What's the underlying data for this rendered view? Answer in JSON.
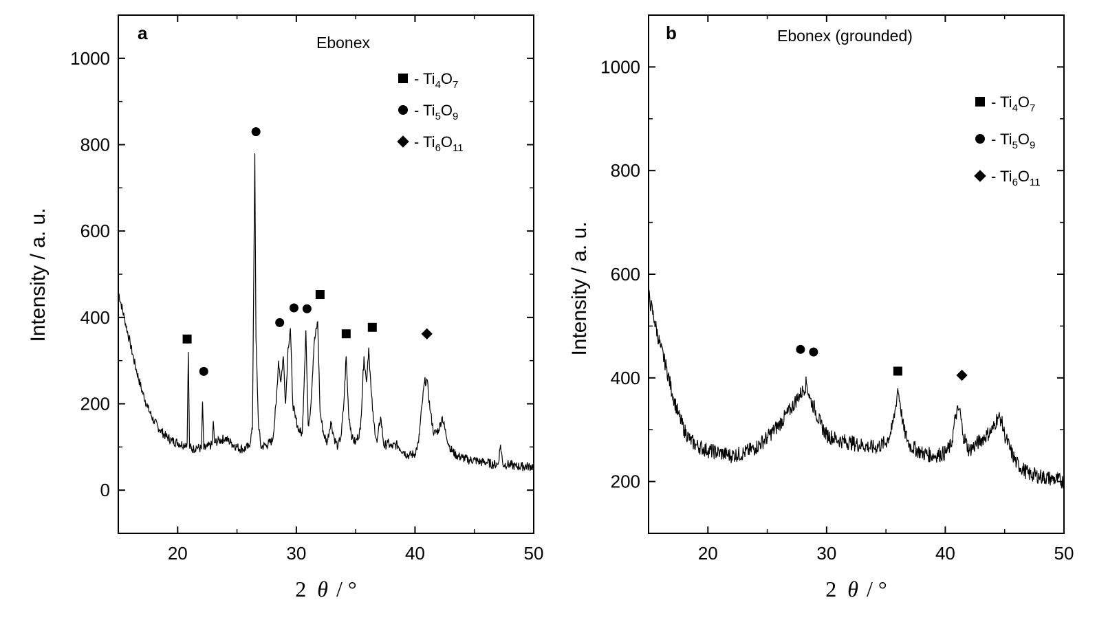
{
  "chart_data": [
    {
      "type": "line",
      "panel_label": "a",
      "title": "Ebonex",
      "xlabel_prefix": "2",
      "xlabel_theta": "θ",
      "xlabel_suffix": "/ °",
      "ylabel": "Intensity / a. u.",
      "xlim": [
        15,
        50
      ],
      "ylim": [
        -100,
        1100
      ],
      "xticks": [
        "20",
        "30",
        "40",
        "50"
      ],
      "yticks": [
        "0",
        "200",
        "400",
        "600",
        "800",
        "1000"
      ],
      "grid": false,
      "legend_position": "top-right",
      "legend": [
        {
          "marker": "square",
          "dash": "-",
          "base": "Ti",
          "sub1": "4",
          "el": "O",
          "sub2": "7"
        },
        {
          "marker": "circle",
          "dash": "-",
          "base": "Ti",
          "sub1": "5",
          "el": "O",
          "sub2": "9"
        },
        {
          "marker": "diamond",
          "dash": "-",
          "base": "Ti",
          "sub1": "6",
          "el": "O",
          "sub2": "11"
        }
      ],
      "series": [
        {
          "x": [
            15,
            15.5,
            16,
            16.5,
            17,
            17.5,
            18,
            18.5,
            19,
            19.5,
            20,
            20.5,
            20.8,
            20.9,
            21.0,
            21.3,
            21.6,
            22.0,
            22.1,
            22.2,
            22.5,
            22.9,
            23.0,
            23.1,
            23.5,
            24.0,
            24.5,
            25.0,
            25.5,
            26.0,
            26.3,
            26.5,
            26.6,
            26.8,
            27.0,
            27.5,
            28.0,
            28.3,
            28.5,
            28.7,
            28.9,
            29.1,
            29.3,
            29.5,
            29.7,
            29.9,
            30.2,
            30.5,
            30.8,
            31.0,
            31.2,
            31.5,
            31.8,
            32.0,
            32.3,
            32.6,
            32.9,
            33.2,
            33.5,
            33.8,
            34.0,
            34.2,
            34.4,
            34.7,
            35.0,
            35.4,
            35.7,
            35.9,
            36.1,
            36.3,
            36.5,
            36.8,
            37.1,
            37.4,
            37.7,
            38.0,
            38.5,
            39.0,
            39.5,
            40.0,
            40.3,
            40.6,
            40.8,
            41.0,
            41.3,
            41.6,
            42.0,
            42.3,
            42.6,
            43.0,
            43.5,
            44.0,
            44.5,
            45.0,
            45.5,
            46.0,
            46.5,
            47.0,
            47.2,
            47.4,
            47.8,
            48.5,
            49.0,
            49.5,
            50
          ],
          "y": [
            460,
            400,
            340,
            280,
            230,
            190,
            160,
            140,
            125,
            115,
            110,
            105,
            110,
            320,
            100,
            95,
            100,
            95,
            205,
            95,
            100,
            105,
            160,
            110,
            115,
            120,
            110,
            100,
            95,
            100,
            140,
            780,
            350,
            160,
            100,
            105,
            115,
            200,
            300,
            250,
            310,
            200,
            330,
            375,
            200,
            170,
            140,
            130,
            370,
            150,
            190,
            340,
            390,
            180,
            130,
            110,
            160,
            120,
            100,
            130,
            200,
            310,
            180,
            120,
            110,
            140,
            310,
            250,
            330,
            230,
            160,
            110,
            170,
            100,
            110,
            100,
            105,
            90,
            80,
            85,
            110,
            200,
            250,
            255,
            180,
            130,
            140,
            170,
            130,
            95,
            80,
            75,
            70,
            70,
            65,
            65,
            60,
            60,
            105,
            60,
            60,
            55,
            55,
            55,
            55
          ]
        }
      ],
      "annotations": [
        {
          "marker": "square",
          "x": 20.8,
          "y": 350
        },
        {
          "marker": "circle",
          "x": 22.2,
          "y": 275
        },
        {
          "marker": "circle",
          "x": 26.6,
          "y": 830
        },
        {
          "marker": "circle",
          "x": 28.6,
          "y": 388
        },
        {
          "marker": "circle",
          "x": 29.8,
          "y": 422
        },
        {
          "marker": "circle",
          "x": 30.9,
          "y": 420
        },
        {
          "marker": "square",
          "x": 32.0,
          "y": 453
        },
        {
          "marker": "square",
          "x": 34.2,
          "y": 362
        },
        {
          "marker": "square",
          "x": 36.4,
          "y": 377
        },
        {
          "marker": "diamond",
          "x": 41.0,
          "y": 362
        }
      ]
    },
    {
      "type": "line",
      "panel_label": "b",
      "title": "Ebonex (grounded)",
      "xlabel_prefix": "2",
      "xlabel_theta": "θ",
      "xlabel_suffix": "/ °",
      "ylabel": "Intensity / a. u.",
      "xlim": [
        15,
        50
      ],
      "ylim": [
        100,
        1100
      ],
      "xticks": [
        "20",
        "30",
        "40",
        "50"
      ],
      "yticks": [
        "200",
        "400",
        "600",
        "800",
        "1000"
      ],
      "grid": false,
      "legend_position": "top-right",
      "legend": [
        {
          "marker": "square",
          "dash": "-",
          "base": "Ti",
          "sub1": "4",
          "el": "O",
          "sub2": "7"
        },
        {
          "marker": "circle",
          "dash": "-",
          "base": "Ti",
          "sub1": "5",
          "el": "O",
          "sub2": "9"
        },
        {
          "marker": "diamond",
          "dash": "-",
          "base": "Ti",
          "sub1": "6",
          "el": "O",
          "sub2": "11"
        }
      ],
      "series": [
        {
          "x": [
            15,
            15.5,
            16,
            16.5,
            17,
            17.5,
            18,
            18.5,
            19,
            20,
            21,
            22,
            23,
            24,
            25,
            26,
            27,
            27.5,
            28,
            28.3,
            28.6,
            29,
            29.5,
            30,
            31,
            32,
            33,
            34,
            35,
            35.5,
            35.8,
            36.0,
            36.2,
            36.5,
            37,
            38,
            39,
            40,
            40.5,
            40.9,
            41.2,
            41.5,
            42,
            42.5,
            43,
            43.5,
            44,
            44.4,
            44.7,
            45,
            45.5,
            46,
            47,
            48,
            49,
            50
          ],
          "y": [
            560,
            510,
            460,
            420,
            370,
            330,
            300,
            280,
            270,
            260,
            255,
            250,
            255,
            265,
            285,
            310,
            340,
            360,
            375,
            390,
            360,
            340,
            310,
            290,
            280,
            275,
            270,
            265,
            275,
            300,
            340,
            380,
            350,
            300,
            270,
            255,
            250,
            255,
            270,
            330,
            340,
            290,
            260,
            270,
            280,
            290,
            300,
            325,
            320,
            290,
            260,
            235,
            215,
            210,
            205,
            200
          ]
        }
      ],
      "annotations": [
        {
          "marker": "circle",
          "x": 27.8,
          "y": 455
        },
        {
          "marker": "circle",
          "x": 28.9,
          "y": 450
        },
        {
          "marker": "square",
          "x": 36.0,
          "y": 413
        },
        {
          "marker": "diamond",
          "x": 41.4,
          "y": 405
        }
      ]
    }
  ]
}
